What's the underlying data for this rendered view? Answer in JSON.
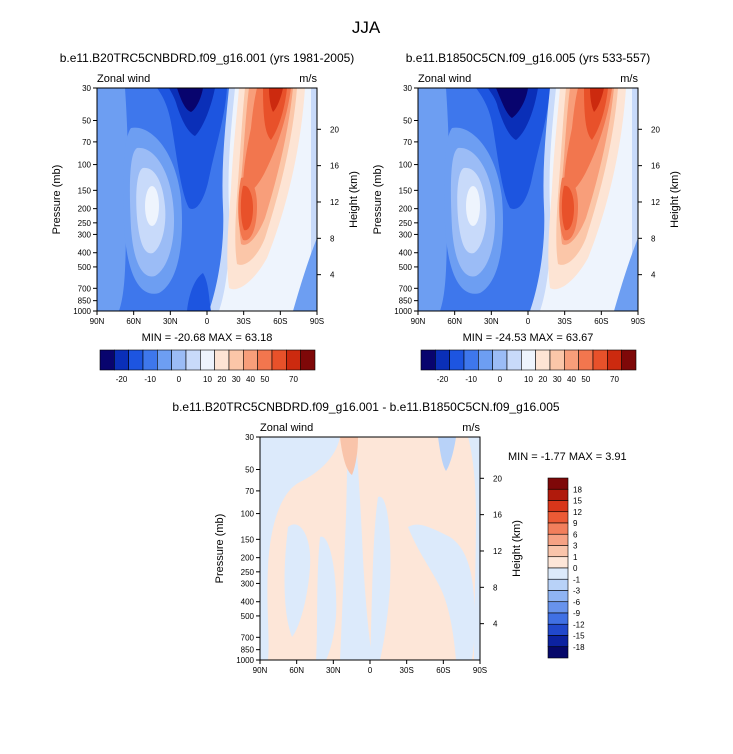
{
  "figure_title": "JJA",
  "chart_data": [
    {
      "type": "heatmap",
      "title": "b.e11.B20TRC5CNBDRD.f09_g16.001 (yrs 1981-2005)",
      "left_label": "Zonal wind",
      "right_label": "m/s",
      "ylabel": "Pressure (mb)",
      "ylabel_right": "Height (km)",
      "x_ticks": [
        "90N",
        "60N",
        "30N",
        "0",
        "30S",
        "60S",
        "90S"
      ],
      "y_ticks": [
        "30",
        "50",
        "70",
        "100",
        "150",
        "200",
        "250",
        "300",
        "400",
        "500",
        "700",
        "850",
        "1000"
      ],
      "y_ticks_right": [
        "20",
        "16",
        "12",
        "8",
        "4"
      ],
      "minmax_text": "MIN = -20.68  MAX = 63.18",
      "colorbar_labels": [
        "-20",
        "-10",
        "0",
        "10",
        "20",
        "30",
        "40",
        "50",
        "70"
      ],
      "colorbar_orientation": "horizontal",
      "colors": [
        "#08046e",
        "#0a2fb8",
        "#1d55e0",
        "#3e77ec",
        "#6d9ef2",
        "#9bbcf6",
        "#c8dafa",
        "#eef4fd",
        "#fde4d4",
        "#fbc6a8",
        "#f89e7a",
        "#f2764e",
        "#e8512a",
        "#cc2a0f",
        "#7e0808"
      ]
    },
    {
      "type": "heatmap",
      "title": "b.e11.B1850C5CN.f09_g16.005 (yrs 533-557)",
      "left_label": "Zonal wind",
      "right_label": "m/s",
      "ylabel": "Pressure (mb)",
      "ylabel_right": "Height (km)",
      "x_ticks": [
        "90N",
        "60N",
        "30N",
        "0",
        "30S",
        "60S",
        "90S"
      ],
      "y_ticks": [
        "30",
        "50",
        "70",
        "100",
        "150",
        "200",
        "250",
        "300",
        "400",
        "500",
        "700",
        "850",
        "1000"
      ],
      "y_ticks_right": [
        "20",
        "16",
        "12",
        "8",
        "4"
      ],
      "minmax_text": "MIN = -24.53  MAX = 63.67",
      "colorbar_labels": [
        "-20",
        "-10",
        "0",
        "10",
        "20",
        "30",
        "40",
        "50",
        "70"
      ],
      "colorbar_orientation": "horizontal",
      "colors": [
        "#08046e",
        "#0a2fb8",
        "#1d55e0",
        "#3e77ec",
        "#6d9ef2",
        "#9bbcf6",
        "#c8dafa",
        "#eef4fd",
        "#fde4d4",
        "#fbc6a8",
        "#f89e7a",
        "#f2764e",
        "#e8512a",
        "#cc2a0f",
        "#7e0808"
      ]
    },
    {
      "type": "heatmap",
      "title": "b.e11.B20TRC5CNBDRD.f09_g16.001 - b.e11.B1850C5CN.f09_g16.005",
      "left_label": "Zonal wind",
      "right_label": "m/s",
      "ylabel": "Pressure (mb)",
      "ylabel_right": "Height (km)",
      "x_ticks": [
        "90N",
        "60N",
        "30N",
        "0",
        "30S",
        "60S",
        "90S"
      ],
      "y_ticks": [
        "30",
        "50",
        "70",
        "100",
        "150",
        "200",
        "250",
        "300",
        "400",
        "500",
        "700",
        "850",
        "1000"
      ],
      "y_ticks_right": [
        "20",
        "16",
        "12",
        "8",
        "4"
      ],
      "minmax_text": "MIN = -1.77  MAX =  3.91",
      "colorbar_labels": [
        "18",
        "15",
        "12",
        "9",
        "6",
        "3",
        "1",
        "0",
        "-1",
        "-3",
        "-6",
        "-9",
        "-12",
        "-15",
        "-18"
      ],
      "colorbar_orientation": "vertical",
      "colors": [
        "#7e0808",
        "#b01a0c",
        "#d8361a",
        "#ec5a35",
        "#f27f5c",
        "#f6a284",
        "#f9c4aa",
        "#fde6d8",
        "#dceafb",
        "#b8d2f8",
        "#8fb4f3",
        "#6893ec",
        "#4070e4",
        "#2148cc",
        "#0c22a0",
        "#06086a"
      ]
    }
  ]
}
